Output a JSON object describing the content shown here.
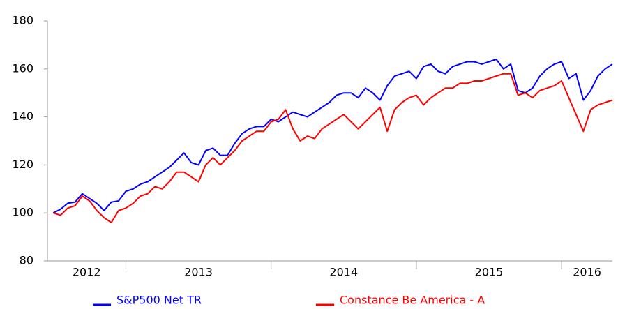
{
  "chart_data": {
    "type": "line",
    "x": [
      2012.5,
      2012.55,
      2012.6,
      2012.65,
      2012.7,
      2012.75,
      2012.8,
      2012.85,
      2012.9,
      2012.95,
      2013.0,
      2013.05,
      2013.1,
      2013.15,
      2013.2,
      2013.25,
      2013.3,
      2013.35,
      2013.4,
      2013.45,
      2013.5,
      2013.55,
      2013.6,
      2013.65,
      2013.7,
      2013.75,
      2013.8,
      2013.85,
      2013.9,
      2013.95,
      2014.0,
      2014.05,
      2014.1,
      2014.15,
      2014.2,
      2014.25,
      2014.3,
      2014.35,
      2014.4,
      2014.45,
      2014.5,
      2014.55,
      2014.6,
      2014.65,
      2014.7,
      2014.75,
      2014.8,
      2014.85,
      2014.9,
      2014.95,
      2015.0,
      2015.05,
      2015.1,
      2015.15,
      2015.2,
      2015.25,
      2015.3,
      2015.35,
      2015.4,
      2015.45,
      2015.5,
      2015.55,
      2015.6,
      2015.65,
      2015.7,
      2015.75,
      2015.8,
      2015.85,
      2015.9,
      2015.95,
      2016.0,
      2016.05,
      2016.1,
      2016.15,
      2016.2,
      2016.25,
      2016.3,
      2016.35
    ],
    "series": [
      {
        "name": "S&P500 Net TR",
        "color": "#0000ff",
        "values": [
          100,
          101.5,
          104,
          104.5,
          108,
          106,
          104,
          101,
          104.5,
          105,
          109,
          110,
          112,
          113,
          115,
          117,
          119,
          122,
          125,
          121,
          120,
          126,
          127,
          124,
          124,
          129,
          133,
          135,
          136,
          136,
          139,
          138,
          140,
          142,
          141,
          140,
          142,
          144,
          146,
          149,
          150,
          150,
          148,
          152,
          150,
          147,
          153,
          157,
          158,
          159,
          156,
          161,
          162,
          159,
          158,
          161,
          162,
          163,
          163,
          162,
          163,
          164,
          160,
          162,
          151,
          150,
          152,
          157,
          160,
          162,
          163,
          156,
          158,
          147,
          151,
          157,
          160,
          162
        ]
      },
      {
        "name": "Constance Be America - A",
        "color": "#ff0000",
        "values": [
          100,
          99,
          102,
          103,
          107,
          105,
          101,
          98,
          96,
          101,
          102,
          104,
          107,
          108,
          111,
          110,
          113,
          117,
          117,
          115,
          113,
          120,
          123,
          120,
          123,
          126,
          130,
          132,
          134,
          134,
          138,
          139,
          143,
          135,
          130,
          132,
          131,
          135,
          137,
          139,
          141,
          138,
          135,
          138,
          141,
          144,
          134,
          143,
          146,
          148,
          149,
          145,
          148,
          150,
          152,
          152,
          154,
          154,
          155,
          155,
          156,
          157,
          158,
          158,
          149,
          150,
          148,
          151,
          152,
          153,
          155,
          148,
          141,
          134,
          143,
          145,
          146,
          147
        ]
      }
    ],
    "xlim": [
      2012.46,
      2016.35
    ],
    "xticks": [
      2013,
      2014,
      2015,
      2016
    ],
    "year_labels": [
      "2012",
      "2013",
      "2014",
      "2015",
      "2016"
    ],
    "ylim": [
      80,
      180
    ],
    "yticks": [
      80,
      100,
      120,
      140,
      160,
      180
    ],
    "grid": false,
    "legend": "bottom"
  }
}
